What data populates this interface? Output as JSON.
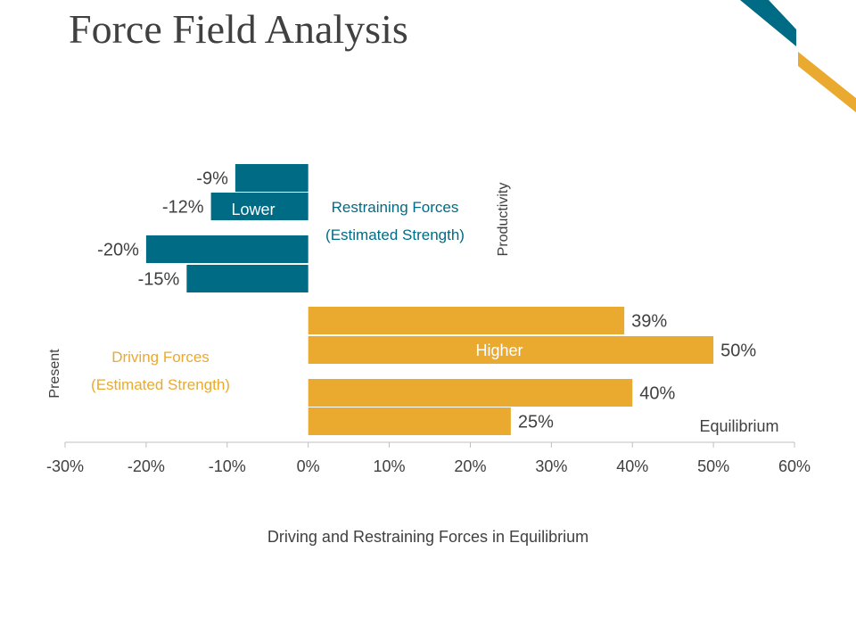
{
  "title": "Force Field Analysis",
  "colors": {
    "restraining": "#006B85",
    "driving": "#EAAA2F",
    "text": "#404040",
    "axis": "#BFBFBF",
    "bar_inner_label": "#ffffff"
  },
  "chart_data": {
    "type": "bar",
    "orientation": "horizontal",
    "title": "Driving and Restraining Forces in Equilibrium",
    "xlim": [
      -0.3,
      0.6
    ],
    "xticks": [
      "-30%",
      "-20%",
      "-10%",
      "0%",
      "10%",
      "20%",
      "30%",
      "40%",
      "50%",
      "60%"
    ],
    "series": [
      {
        "name": "Restraining Forces",
        "color": "#006B85",
        "values": [
          -0.09,
          -0.12,
          -0.2,
          -0.15
        ],
        "labels": [
          "-9%",
          "-12%",
          "-20%",
          "-15%"
        ]
      },
      {
        "name": "Driving Forces",
        "color": "#EAAA2F",
        "values": [
          0.39,
          0.5,
          0.4,
          0.25
        ],
        "labels": [
          "39%",
          "50%",
          "40%",
          "25%"
        ]
      }
    ],
    "annotations": {
      "restraining_title": "Restraining Forces",
      "restraining_subtitle": "(Estimated Strength)",
      "driving_title": "Driving Forces",
      "driving_subtitle": "(Estimated Strength)",
      "lower": "Lower",
      "higher": "Higher",
      "productivity": "Productivity",
      "present": "Present",
      "equilibrium": "Equilibrium"
    }
  }
}
